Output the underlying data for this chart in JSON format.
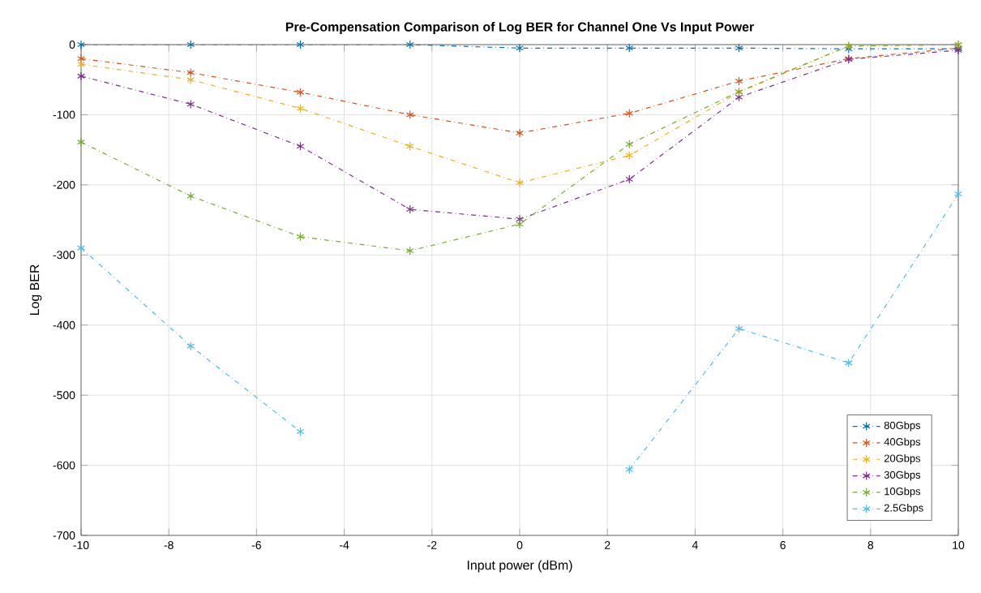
{
  "chart_data": {
    "type": "line",
    "title": "Pre-Compensation Comparison  of Log BER for Channel One Vs Input Power",
    "xlabel": "Input power (dBm)",
    "ylabel": "Log BER",
    "x": [
      -10,
      -7.5,
      -5,
      -2.5,
      0,
      2.5,
      5,
      7.5,
      10
    ],
    "series": [
      {
        "name": "80Gbps",
        "color": "#0072bd",
        "values": [
          0,
          0,
          0,
          0,
          -5,
          -5,
          -5,
          -6,
          -6
        ]
      },
      {
        "name": "40Gbps",
        "color": "#d95319",
        "values": [
          -20,
          -40,
          -68,
          -100,
          -126,
          -98,
          -52,
          -20,
          -5
        ]
      },
      {
        "name": "20Gbps",
        "color": "#edb120",
        "values": [
          -28,
          -50,
          -91,
          -145,
          -197,
          -158,
          -68,
          -2,
          0
        ]
      },
      {
        "name": "30Gbps",
        "color": "#7e2f8e",
        "values": [
          -45,
          -85,
          -145,
          -235,
          -249,
          -192,
          -75,
          -21,
          -8
        ]
      },
      {
        "name": "10Gbps",
        "color": "#77ac30",
        "values": [
          -139,
          -216,
          -274,
          -294,
          -256,
          -142,
          -67,
          -2,
          0
        ]
      },
      {
        "name": "2.5Gbps",
        "color": "#4dbeee",
        "values": [
          -290,
          -430,
          -552,
          null,
          null,
          -606,
          -405,
          -454,
          -213
        ]
      }
    ],
    "xlim": [
      -10,
      10
    ],
    "ylim": [
      -700,
      0
    ],
    "xticks": [
      -10,
      -8,
      -6,
      -4,
      -2,
      0,
      2,
      4,
      6,
      8,
      10
    ],
    "yticks": [
      -700,
      -600,
      -500,
      -400,
      -300,
      -200,
      -100,
      0
    ],
    "grid": true,
    "legend": "bottom right",
    "marker": "cross",
    "line_style": "dashdot"
  }
}
